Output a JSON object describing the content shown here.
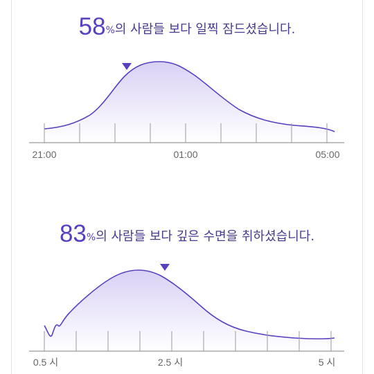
{
  "sleep_onset": {
    "percent": "58",
    "percent_sign": "%",
    "message": "의 사람들 보다 일찍 잠드셨습니다.",
    "axis_labels": [
      "21:00",
      "01:00",
      "05:00"
    ],
    "marker_color": "#5a3fbf"
  },
  "deep_sleep": {
    "percent": "83",
    "percent_sign": "%",
    "message": "의 사람들 보다 깊은 수면을 취하셨습니다.",
    "axis_labels": [
      "0.5 시",
      "2.5 시",
      "5 시"
    ],
    "marker_color": "#5a3fbf"
  },
  "colors": {
    "curve": "#5a3fbf",
    "fill_top": "#d9d1f5",
    "fill_bottom": "#ffffff",
    "axis": "#9a9a9a",
    "headline": "#4a3a8c"
  }
}
